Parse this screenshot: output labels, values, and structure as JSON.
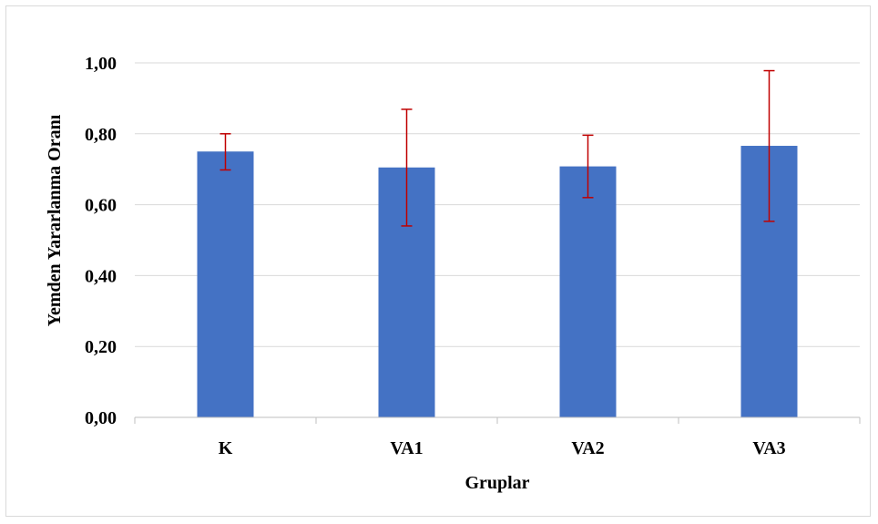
{
  "chart_data": {
    "type": "bar",
    "title": "",
    "xlabel": "Gruplar",
    "ylabel": "Yemden Yararlanma Oranı",
    "categories": [
      "K",
      "VA1",
      "VA2",
      "VA3"
    ],
    "values": [
      0.75,
      0.705,
      0.708,
      0.766
    ],
    "error_low": [
      0.698,
      0.54,
      0.62,
      0.553
    ],
    "error_high": [
      0.8,
      0.869,
      0.796,
      0.978
    ],
    "ylim": [
      0,
      1.0
    ],
    "yticks": [
      0.0,
      0.2,
      0.4,
      0.6,
      0.8,
      1.0
    ],
    "ytick_labels": [
      "0,00",
      "0,20",
      "0,40",
      "0,60",
      "0,80",
      "1,00"
    ],
    "grid": true,
    "legend": "none",
    "colors": {
      "bar": "#4472c4",
      "error_bar": "#c00000",
      "grid": "#d9d9d9",
      "axis": "#bfbfbf"
    }
  }
}
